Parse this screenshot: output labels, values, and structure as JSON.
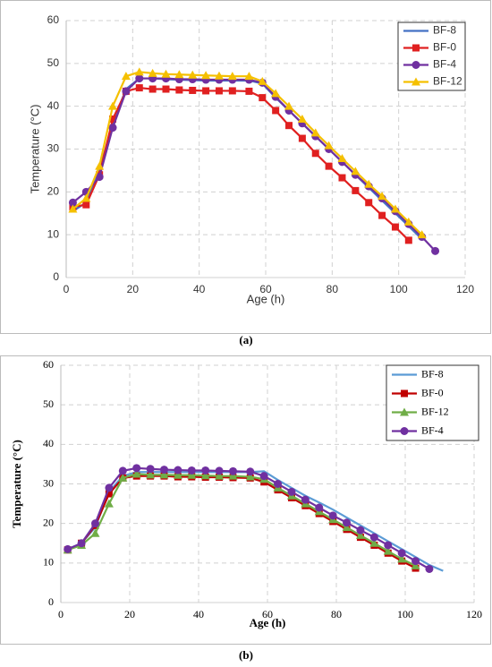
{
  "chart_data": [
    {
      "type": "line",
      "caption": "(a)",
      "xlabel": "Age (h)",
      "ylabel": "Temperature (°C)",
      "x": [
        2,
        6,
        10,
        14,
        18,
        22,
        26,
        30,
        34,
        38,
        42,
        46,
        50,
        55,
        59,
        63,
        67,
        71,
        75,
        79,
        83,
        87,
        91,
        95,
        99,
        103,
        107,
        111
      ],
      "xlim": [
        0,
        120
      ],
      "xticks": [
        0,
        20,
        40,
        60,
        80,
        100,
        120
      ],
      "ylim": [
        0,
        60
      ],
      "yticks": [
        0,
        10,
        20,
        30,
        40,
        50,
        60
      ],
      "grid": true,
      "legend": "upper right",
      "series": [
        {
          "name": "BF-8",
          "color": "#4472c4",
          "marker": "none",
          "values": [
            15.5,
            17.5,
            25,
            36,
            44,
            46.5,
            46.5,
            46.3,
            46.2,
            46.1,
            46,
            46,
            46,
            46,
            45.3,
            42,
            39,
            36,
            33,
            30,
            27,
            24,
            21,
            18,
            15,
            12,
            9,
            null
          ]
        },
        {
          "name": "BF-0",
          "color": "#e02020",
          "marker": "square",
          "values": [
            16.5,
            17,
            24,
            37,
            43.5,
            44.3,
            44,
            44,
            43.8,
            43.7,
            43.6,
            43.6,
            43.6,
            43.5,
            42,
            39,
            35.5,
            32.5,
            29,
            26,
            23.3,
            20.3,
            17.5,
            14.5,
            11.8,
            8.7,
            null,
            null
          ]
        },
        {
          "name": "BF-4",
          "color": "#7030a0",
          "marker": "circle",
          "values": [
            17.5,
            20,
            23.5,
            35,
            43.5,
            46.5,
            46.5,
            46.5,
            46.3,
            46.3,
            46.2,
            46.2,
            46.2,
            46.2,
            45.5,
            42.2,
            39,
            36,
            33,
            30,
            27,
            24,
            21.3,
            18.5,
            15.5,
            12.5,
            9.5,
            6.2
          ]
        },
        {
          "name": "BF-12",
          "color": "#f5c000",
          "marker": "triangle",
          "values": [
            16,
            18.5,
            26,
            40,
            47,
            48,
            47.7,
            47.5,
            47.4,
            47.3,
            47.2,
            47.1,
            47,
            47,
            45.8,
            43,
            40,
            37,
            33.8,
            30.8,
            27.8,
            24.8,
            21.8,
            19,
            16,
            13,
            10,
            null
          ]
        }
      ]
    },
    {
      "type": "line",
      "caption": "(b)",
      "xlabel": "Age (h)",
      "ylabel": "Temperature (°C)",
      "x": [
        2,
        6,
        10,
        14,
        18,
        22,
        26,
        30,
        34,
        38,
        42,
        46,
        50,
        55,
        59,
        63,
        67,
        71,
        75,
        79,
        83,
        87,
        91,
        95,
        99,
        103,
        107,
        111
      ],
      "xlim": [
        0,
        120
      ],
      "xticks": [
        0,
        20,
        40,
        60,
        80,
        100,
        120
      ],
      "ylim": [
        0,
        60
      ],
      "yticks": [
        0,
        10,
        20,
        30,
        40,
        50,
        60
      ],
      "grid": true,
      "legend": "upper right",
      "series": [
        {
          "name": "BF-8",
          "color": "#5b9bd5",
          "marker": "none",
          "values": [
            13.5,
            15,
            19,
            28,
            32,
            33,
            33,
            33,
            33,
            33,
            33,
            33,
            33,
            33,
            33.2,
            31,
            29,
            27,
            25.3,
            23.5,
            21.5,
            19.5,
            17.5,
            15.5,
            13.5,
            11.5,
            9.5,
            8
          ]
        },
        {
          "name": "BF-0",
          "color": "#c00000",
          "marker": "square",
          "values": [
            13.3,
            15,
            19.5,
            27.5,
            31.5,
            32,
            32,
            32,
            31.8,
            31.8,
            31.7,
            31.7,
            31.6,
            31.5,
            30.5,
            28.5,
            26.5,
            24.5,
            22.5,
            20.5,
            18.5,
            16.5,
            14.5,
            12.5,
            10.5,
            8.7,
            null,
            null
          ]
        },
        {
          "name": "BF-12",
          "color": "#70ad47",
          "marker": "triangle",
          "values": [
            13.3,
            14.5,
            17.5,
            25,
            31.5,
            32.5,
            32.3,
            32.3,
            32.2,
            32.2,
            32.1,
            32,
            32,
            31.8,
            31.2,
            29,
            27,
            25,
            23,
            21,
            19,
            17,
            15,
            13,
            11,
            9.3,
            null,
            null
          ]
        },
        {
          "name": "BF-4",
          "color": "#7030a0",
          "marker": "circle",
          "values": [
            13.5,
            15,
            20,
            29,
            33.3,
            34,
            33.8,
            33.6,
            33.5,
            33.4,
            33.4,
            33.3,
            33.2,
            33.1,
            32,
            30,
            28,
            26,
            24,
            22,
            20.2,
            18.3,
            16.5,
            14.5,
            12.5,
            10.5,
            8.5,
            null
          ]
        }
      ]
    }
  ]
}
